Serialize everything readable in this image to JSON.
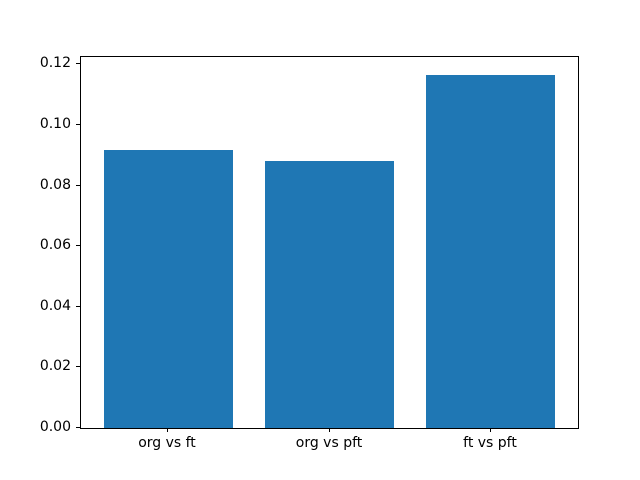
{
  "chart_data": {
    "type": "bar",
    "categories": [
      "org vs ft",
      "org vs pft",
      "ft vs pft"
    ],
    "values": [
      0.0917,
      0.0881,
      0.1164
    ],
    "title": "",
    "xlabel": "",
    "ylabel": "",
    "ylim": [
      0,
      0.1224
    ],
    "xlim": [
      -0.54,
      2.54
    ],
    "yticks": [
      0.0,
      0.02,
      0.04,
      0.06,
      0.08,
      0.1,
      0.12
    ],
    "ytick_format_decimals": 2,
    "bar_width": 0.8,
    "bar_color": "#1f77b4",
    "grid": false,
    "legend": "none",
    "frame": "full-box"
  },
  "figure": {
    "background_color": "#ffffff",
    "axis_color": "#000000",
    "tick_label_color": "#000000"
  }
}
